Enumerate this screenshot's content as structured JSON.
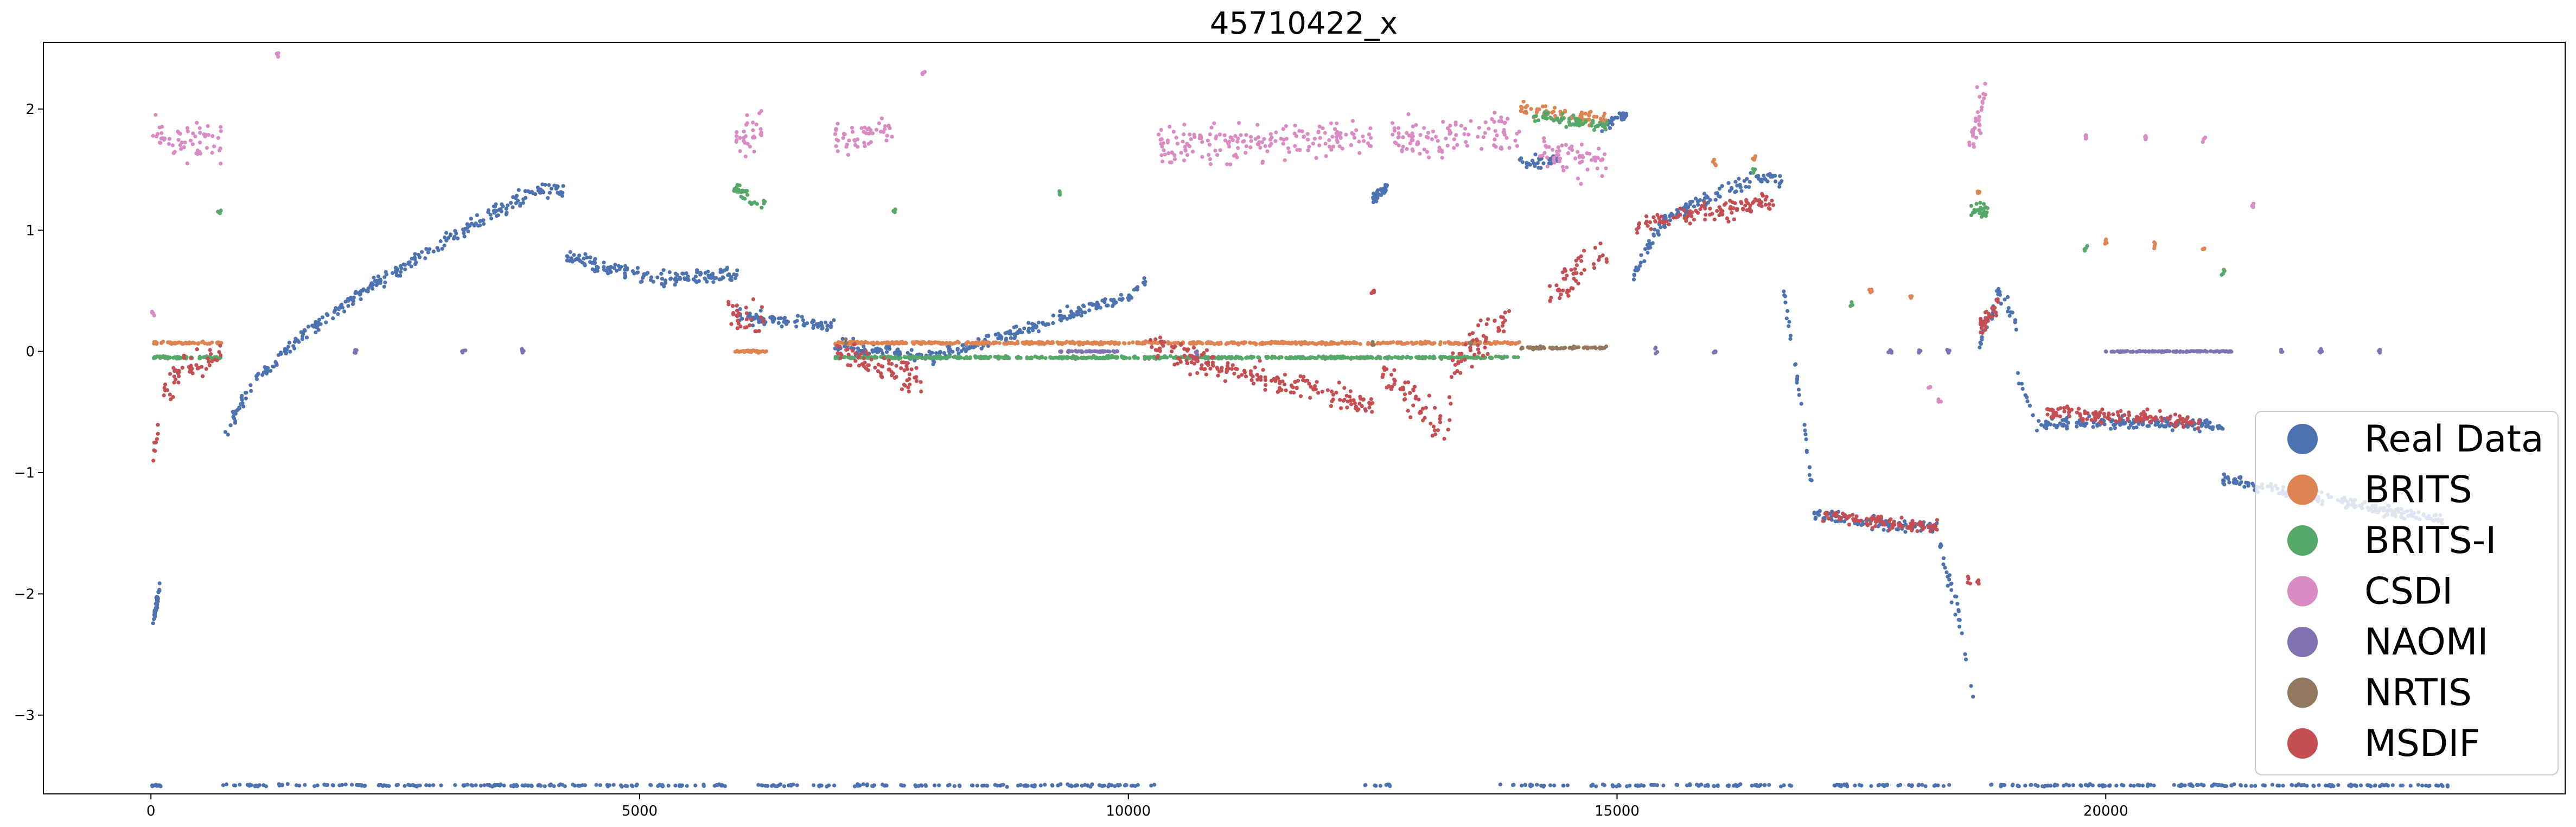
{
  "chart_data": {
    "type": "scatter",
    "title": "45710422_x",
    "xlabel": "",
    "ylabel": "",
    "xlim": [
      -1100,
      24700
    ],
    "ylim": [
      -3.65,
      2.55
    ],
    "x_ticks": [
      0,
      5000,
      10000,
      15000,
      20000
    ],
    "x_tick_labels": [
      "0",
      "5000",
      "10000",
      "15000",
      "20000"
    ],
    "y_ticks": [
      2,
      1,
      0,
      -1,
      -2,
      -3
    ],
    "y_tick_labels": [
      "2",
      "1",
      "0",
      "−1",
      "−2",
      "−3"
    ],
    "grid": false,
    "legend_position": "lower-right",
    "series": [
      {
        "name": "Real Data",
        "color": "#4c72b0",
        "segments": [
          {
            "x": [
              20,
              90
            ],
            "y": [
              -2.25,
              -1.95
            ],
            "noise": 0.05
          },
          {
            "x": [
              750,
              1000,
              1500,
              2000,
              2500,
              3000,
              3500,
              4000,
              4250
            ],
            "y": [
              -0.7,
              -0.3,
              0.1,
              0.4,
              0.65,
              0.9,
              1.15,
              1.35,
              1.3
            ],
            "noise": 0.06
          },
          {
            "x": [
              4250,
              4600,
              5000,
              5500,
              6000
            ],
            "y": [
              0.8,
              0.7,
              0.62,
              0.6,
              0.65
            ],
            "noise": 0.06
          },
          {
            "x": [
              6000,
              6500,
              7000
            ],
            "y": [
              0.3,
              0.25,
              0.2
            ],
            "noise": 0.05
          },
          {
            "x": [
              7000,
              7500,
              8000,
              9000,
              10000,
              10200
            ],
            "y": [
              0.05,
              0.0,
              -0.05,
              0.2,
              0.45,
              0.6
            ],
            "noise": 0.05
          },
          {
            "x": [
              12500,
              12650
            ],
            "y": [
              1.25,
              1.35
            ],
            "noise": 0.05
          },
          {
            "x": [
              14000,
              14400
            ],
            "y": [
              1.55,
              1.6
            ],
            "noise": 0.05
          },
          {
            "x": [
              14800,
              15100
            ],
            "y": [
              1.85,
              1.95
            ],
            "noise": 0.05
          },
          {
            "x": [
              15150,
              15500,
              16000,
              16500,
              16700
            ],
            "y": [
              0.6,
              1.1,
              1.3,
              1.45,
              1.4
            ],
            "noise": 0.06
          },
          {
            "x": [
              16700,
              16900,
              17000
            ],
            "y": [
              0.5,
              -0.5,
              -1.2
            ],
            "noise": 0.1
          },
          {
            "x": [
              17000,
              17500,
              18000,
              18300
            ],
            "y": [
              -1.35,
              -1.4,
              -1.45,
              -1.45
            ],
            "noise": 0.05
          },
          {
            "x": [
              18300,
              18500,
              18600,
              18650
            ],
            "y": [
              -1.6,
              -2.2,
              -2.7,
              -2.9
            ],
            "noise": 0.08
          },
          {
            "x": [
              18700,
              18900,
              19100
            ],
            "y": [
              0.0,
              0.5,
              0.2
            ],
            "noise": 0.1
          },
          {
            "x": [
              19100,
              19300,
              20000,
              21000,
              21200
            ],
            "y": [
              -0.2,
              -0.6,
              -0.58,
              -0.6,
              -0.65
            ],
            "noise": 0.05
          },
          {
            "x": [
              21200,
              21500,
              22500,
              23500
            ],
            "y": [
              -1.05,
              -1.1,
              -1.25,
              -1.4
            ],
            "noise": 0.05
          }
        ],
        "bottom_band": {
          "y": -3.58,
          "x_ranges": [
            [
              0,
              100
            ],
            [
              700,
              5900
            ],
            [
              6200,
              7000
            ],
            [
              7200,
              10300
            ],
            [
              12400,
              12700
            ],
            [
              13800,
              14500
            ],
            [
              14700,
              16800
            ],
            [
              17200,
              18400
            ],
            [
              18800,
              23500
            ]
          ]
        }
      },
      {
        "name": "BRITS",
        "color": "#dd8452",
        "segments": [
          {
            "x": [
              20,
              720
            ],
            "y": [
              0.07,
              0.07
            ],
            "noise": 0.01
          },
          {
            "x": [
              5950,
              6300
            ],
            "y": [
              0.0,
              0.0
            ],
            "noise": 0.01
          },
          {
            "x": [
              7000,
              14000
            ],
            "y": [
              0.07,
              0.07
            ],
            "noise": 0.01
          },
          {
            "x": [
              14000,
              14900
            ],
            "y": [
              2.0,
              1.9
            ],
            "noise": 0.06
          }
        ],
        "scatter_points": [
          [
            16000,
            1.55
          ],
          [
            16400,
            1.6
          ],
          [
            17600,
            0.5
          ],
          [
            18000,
            0.45
          ],
          [
            18700,
            1.3
          ],
          [
            20000,
            0.9
          ],
          [
            20500,
            0.88
          ],
          [
            21000,
            0.85
          ]
        ]
      },
      {
        "name": "BRITS-I",
        "color": "#55a868",
        "segments": [
          {
            "x": [
              20,
              720
            ],
            "y": [
              -0.05,
              -0.05
            ],
            "noise": 0.01
          },
          {
            "x": [
              5950,
              6300
            ],
            "y": [
              1.35,
              1.2
            ],
            "noise": 0.06
          },
          {
            "x": [
              7000,
              14000
            ],
            "y": [
              -0.05,
              -0.05
            ],
            "noise": 0.01
          },
          {
            "x": [
              14150,
              14900
            ],
            "y": [
              1.95,
              1.85
            ],
            "noise": 0.05
          },
          {
            "x": [
              18600,
              18800
            ],
            "y": [
              1.2,
              1.15
            ],
            "noise": 0.06
          }
        ],
        "scatter_points": [
          [
            700,
            1.15
          ],
          [
            7600,
            1.15
          ],
          [
            9300,
            1.3
          ],
          [
            16400,
            1.5
          ],
          [
            17400,
            0.4
          ],
          [
            19800,
            0.85
          ],
          [
            21200,
            0.65
          ]
        ]
      },
      {
        "name": "CSDI",
        "color": "#da8bc3",
        "segments": [
          {
            "x": [
              20,
              720
            ],
            "y": [
              1.8,
              1.7
            ],
            "noise": 0.15
          },
          {
            "x": [
              5950,
              6250
            ],
            "y": [
              1.7,
              1.85
            ],
            "noise": 0.15
          },
          {
            "x": [
              7000,
              7600
            ],
            "y": [
              1.75,
              1.8
            ],
            "noise": 0.15
          },
          {
            "x": [
              10300,
              12500
            ],
            "y": [
              1.7,
              1.75
            ],
            "noise": 0.15
          },
          {
            "x": [
              12700,
              14000
            ],
            "y": [
              1.75,
              1.8
            ],
            "noise": 0.15
          },
          {
            "x": [
              14200,
              14900
            ],
            "y": [
              1.65,
              1.55
            ],
            "noise": 0.15
          },
          {
            "x": [
              18600,
              18800
            ],
            "y": [
              1.7,
              2.2
            ],
            "noise": 0.2
          }
        ],
        "scatter_points": [
          [
            20,
            0.3
          ],
          [
            1300,
            2.45
          ],
          [
            7900,
            2.3
          ],
          [
            19800,
            1.78
          ],
          [
            20400,
            1.76
          ],
          [
            21000,
            1.75
          ],
          [
            18200,
            -0.3
          ],
          [
            18300,
            -0.4
          ],
          [
            21500,
            1.2
          ]
        ]
      },
      {
        "name": "NAOMI",
        "color": "#8172b3",
        "segments": [
          {
            "x": [
              9300,
              9900
            ],
            "y": [
              0.0,
              0.0
            ],
            "noise": 0.005
          },
          {
            "x": [
              20000,
              21300
            ],
            "y": [
              0.0,
              0.0
            ],
            "noise": 0.005
          }
        ],
        "scatter_points": [
          [
            2100,
            0.0
          ],
          [
            3200,
            0.0
          ],
          [
            3800,
            0.0
          ],
          [
            10700,
            0.0
          ],
          [
            15400,
            0.0
          ],
          [
            16000,
            0.0
          ],
          [
            17800,
            0.0
          ],
          [
            18100,
            0.0
          ],
          [
            18400,
            0.0
          ],
          [
            21800,
            0.0
          ],
          [
            22200,
            0.0
          ],
          [
            22800,
            0.0
          ]
        ]
      },
      {
        "name": "NRTIS",
        "color": "#937860",
        "segments": [
          {
            "x": [
              14000,
              14900
            ],
            "y": [
              0.03,
              0.03
            ],
            "noise": 0.01
          }
        ],
        "scatter_points": [
          [
            7100,
            0.07
          ],
          [
            12500,
            0.07
          ],
          [
            13500,
            0.07
          ]
        ]
      },
      {
        "name": "MSDIF",
        "color": "#c44e52",
        "segments": [
          {
            "x": [
              20,
              150,
              300,
              500,
              720
            ],
            "y": [
              -0.9,
              -0.3,
              -0.15,
              -0.1,
              -0.05
            ],
            "noise": 0.12
          },
          {
            "x": [
              5900,
              6300
            ],
            "y": [
              0.35,
              0.25
            ],
            "noise": 0.12
          },
          {
            "x": [
              7000,
              7500,
              7900
            ],
            "y": [
              0.0,
              -0.1,
              -0.25
            ],
            "noise": 0.12
          },
          {
            "x": [
              10200,
              11000,
              12000,
              12500
            ],
            "y": [
              0.05,
              -0.15,
              -0.35,
              -0.45
            ],
            "noise": 0.1
          },
          {
            "x": [
              12600,
              12900,
              13100,
              13300
            ],
            "y": [
              -0.2,
              -0.4,
              -0.6,
              -0.5
            ],
            "noise": 0.15
          },
          {
            "x": [
              13300,
              13600,
              13900
            ],
            "y": [
              -0.1,
              0.1,
              0.3
            ],
            "noise": 0.15
          },
          {
            "x": [
              14300,
              14600,
              14900
            ],
            "y": [
              0.45,
              0.65,
              0.8
            ],
            "noise": 0.15
          },
          {
            "x": [
              15200,
              16000,
              16600
            ],
            "y": [
              1.05,
              1.15,
              1.25
            ],
            "noise": 0.08
          },
          {
            "x": [
              17100,
              17600,
              18300
            ],
            "y": [
              -1.35,
              -1.4,
              -1.45
            ],
            "noise": 0.05
          },
          {
            "x": [
              18700,
              18900
            ],
            "y": [
              0.2,
              0.4
            ],
            "noise": 0.1
          },
          {
            "x": [
              19400,
              20500,
              21000
            ],
            "y": [
              -0.5,
              -0.55,
              -0.6
            ],
            "noise": 0.05
          }
        ],
        "scatter_points": [
          [
            12500,
            0.5
          ],
          [
            18600,
            -1.9
          ],
          [
            18700,
            -1.9
          ]
        ]
      }
    ]
  }
}
